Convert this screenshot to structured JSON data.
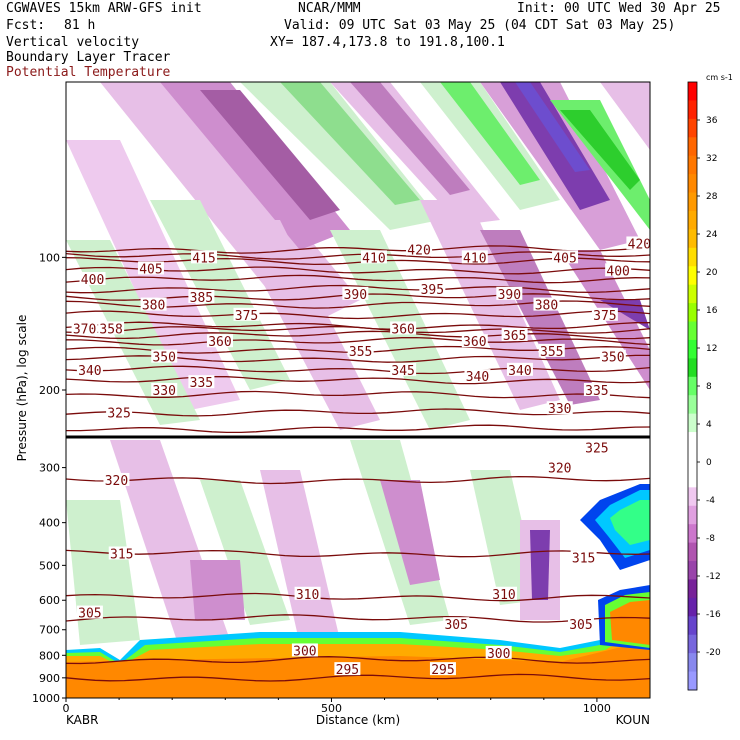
{
  "header": {
    "model": "CGWAVES 15km ARW-GFS init",
    "org": "NCAR/MMM",
    "init": "Init: 00 UTC Wed 30 Apr 25",
    "fcst_label": "Fcst:",
    "fcst_value": "81 h",
    "valid": "Valid: 09 UTC Sat 03 May 25 (04 CDT Sat 03 May 25)",
    "field1": "Vertical velocity",
    "field2": "Boundary Layer Tracer",
    "field3": "Potential Temperature",
    "xy": "XY= 187.4,173.8 to 191.8,100.1"
  },
  "colors": {
    "contour": "#7a0b0b",
    "field3_text": "#8b1a1a"
  },
  "chart_data": {
    "type": "heatmap",
    "xlabel": "Distance (km)",
    "ylabel": "Pressure (hPa), log scale",
    "xlim": [
      0,
      1100
    ],
    "ylim": [
      1000,
      40
    ],
    "x_ticks": [
      "0",
      "500",
      "1000"
    ],
    "x_tick_values": [
      0,
      500,
      1000
    ],
    "y_ticks": [
      "100",
      "200",
      "300",
      "400",
      "500",
      "600",
      "700",
      "800",
      "900",
      "1000"
    ],
    "y_tick_values": [
      100,
      200,
      300,
      400,
      500,
      600,
      700,
      800,
      900,
      1000
    ],
    "endpoints": {
      "left": "KABR",
      "right": "KOUN"
    },
    "colorbar": {
      "unit": "cm s-1",
      "ticks": [
        "36",
        "32",
        "28",
        "24",
        "20",
        "16",
        "12",
        "8",
        "4",
        "0",
        "-4",
        "-8",
        "-12",
        "-16",
        "-20"
      ],
      "colors": [
        "#ff0000",
        "#ff2200",
        "#ff4400",
        "#ff6600",
        "#ff7700",
        "#ff8800",
        "#ff9900",
        "#ffaa00",
        "#ffbb00",
        "#ffdd00",
        "#ffff00",
        "#ccff00",
        "#99ff00",
        "#66ff33",
        "#33ff33",
        "#22dd22",
        "#66ff66",
        "#99ff99",
        "#ccffcc",
        "#ffffff",
        "#ffffff",
        "#ffffff",
        "#f0c8f0",
        "#e0a0e0",
        "#cc77cc",
        "#b055b0",
        "#9944aa",
        "#772299",
        "#6622aa",
        "#6644cc",
        "#7766dd",
        "#8888ee",
        "#9999ff"
      ]
    },
    "isentropes": [
      {
        "label": "295",
        "p": 900
      },
      {
        "label": "300",
        "p": 820
      },
      {
        "label": "305",
        "p": 660
      },
      {
        "label": "310",
        "p": 590
      },
      {
        "label": "315",
        "p": 470
      },
      {
        "label": "320",
        "p": 320
      },
      {
        "label": "325",
        "p": 245
      },
      {
        "label": "330",
        "p": 225
      },
      {
        "label": "335",
        "p": 205
      },
      {
        "label": "340",
        "p": 190
      },
      {
        "label": "345",
        "p": 180
      },
      {
        "label": "350",
        "p": 170
      },
      {
        "label": "355",
        "p": 162
      },
      {
        "label": "360",
        "p": 155
      },
      {
        "label": "365",
        "p": 150
      },
      {
        "label": "370",
        "p": 146
      },
      {
        "label": "375",
        "p": 143
      },
      {
        "label": "380",
        "p": 135
      },
      {
        "label": "385",
        "p": 128
      },
      {
        "label": "390",
        "p": 123
      },
      {
        "label": "395",
        "p": 118
      },
      {
        "label": "400",
        "p": 112
      },
      {
        "label": "405",
        "p": 107
      },
      {
        "label": "410",
        "p": 102
      },
      {
        "label": "415",
        "p": 99
      },
      {
        "label": "420",
        "p": 96
      }
    ],
    "contour_labels": [
      {
        "text": "415",
        "x": 260,
        "p": 100
      },
      {
        "text": "410",
        "x": 580,
        "p": 100
      },
      {
        "text": "420",
        "x": 665,
        "p": 96
      },
      {
        "text": "410",
        "x": 770,
        "p": 100
      },
      {
        "text": "405",
        "x": 940,
        "p": 100
      },
      {
        "text": "420",
        "x": 1080,
        "p": 93
      },
      {
        "text": "400",
        "x": 50,
        "p": 112
      },
      {
        "text": "405",
        "x": 160,
        "p": 106
      },
      {
        "text": "400",
        "x": 1040,
        "p": 107
      },
      {
        "text": "380",
        "x": 165,
        "p": 128
      },
      {
        "text": "385",
        "x": 255,
        "p": 123
      },
      {
        "text": "390",
        "x": 545,
        "p": 121
      },
      {
        "text": "395",
        "x": 690,
        "p": 118
      },
      {
        "text": "390",
        "x": 835,
        "p": 121
      },
      {
        "text": "380",
        "x": 905,
        "p": 128
      },
      {
        "text": "375",
        "x": 340,
        "p": 135
      },
      {
        "text": "375",
        "x": 1015,
        "p": 135
      },
      {
        "text": "370",
        "x": 35,
        "p": 145
      },
      {
        "text": "358",
        "x": 85,
        "p": 145
      },
      {
        "text": "360",
        "x": 290,
        "p": 155
      },
      {
        "text": "360",
        "x": 635,
        "p": 145
      },
      {
        "text": "360",
        "x": 770,
        "p": 155
      },
      {
        "text": "365",
        "x": 845,
        "p": 150
      },
      {
        "text": "350",
        "x": 185,
        "p": 168
      },
      {
        "text": "355",
        "x": 555,
        "p": 163
      },
      {
        "text": "355",
        "x": 915,
        "p": 163
      },
      {
        "text": "350",
        "x": 1030,
        "p": 168
      },
      {
        "text": "340",
        "x": 45,
        "p": 180
      },
      {
        "text": "345",
        "x": 635,
        "p": 180
      },
      {
        "text": "340",
        "x": 775,
        "p": 186
      },
      {
        "text": "340",
        "x": 855,
        "p": 180
      },
      {
        "text": "330",
        "x": 185,
        "p": 200
      },
      {
        "text": "335",
        "x": 255,
        "p": 192
      },
      {
        "text": "335",
        "x": 1000,
        "p": 200
      },
      {
        "text": "325",
        "x": 100,
        "p": 225
      },
      {
        "text": "330",
        "x": 930,
        "p": 220
      },
      {
        "text": "325",
        "x": 1000,
        "p": 270
      },
      {
        "text": "320",
        "x": 95,
        "p": 320
      },
      {
        "text": "320",
        "x": 930,
        "p": 300
      },
      {
        "text": "315",
        "x": 105,
        "p": 470
      },
      {
        "text": "315",
        "x": 975,
        "p": 480
      },
      {
        "text": "310",
        "x": 455,
        "p": 580
      },
      {
        "text": "310",
        "x": 825,
        "p": 580
      },
      {
        "text": "305",
        "x": 45,
        "p": 640
      },
      {
        "text": "305",
        "x": 735,
        "p": 680
      },
      {
        "text": "305",
        "x": 970,
        "p": 680
      },
      {
        "text": "300",
        "x": 450,
        "p": 780
      },
      {
        "text": "300",
        "x": 815,
        "p": 790
      },
      {
        "text": "295",
        "x": 530,
        "p": 860
      },
      {
        "text": "295",
        "x": 710,
        "p": 860
      }
    ]
  }
}
